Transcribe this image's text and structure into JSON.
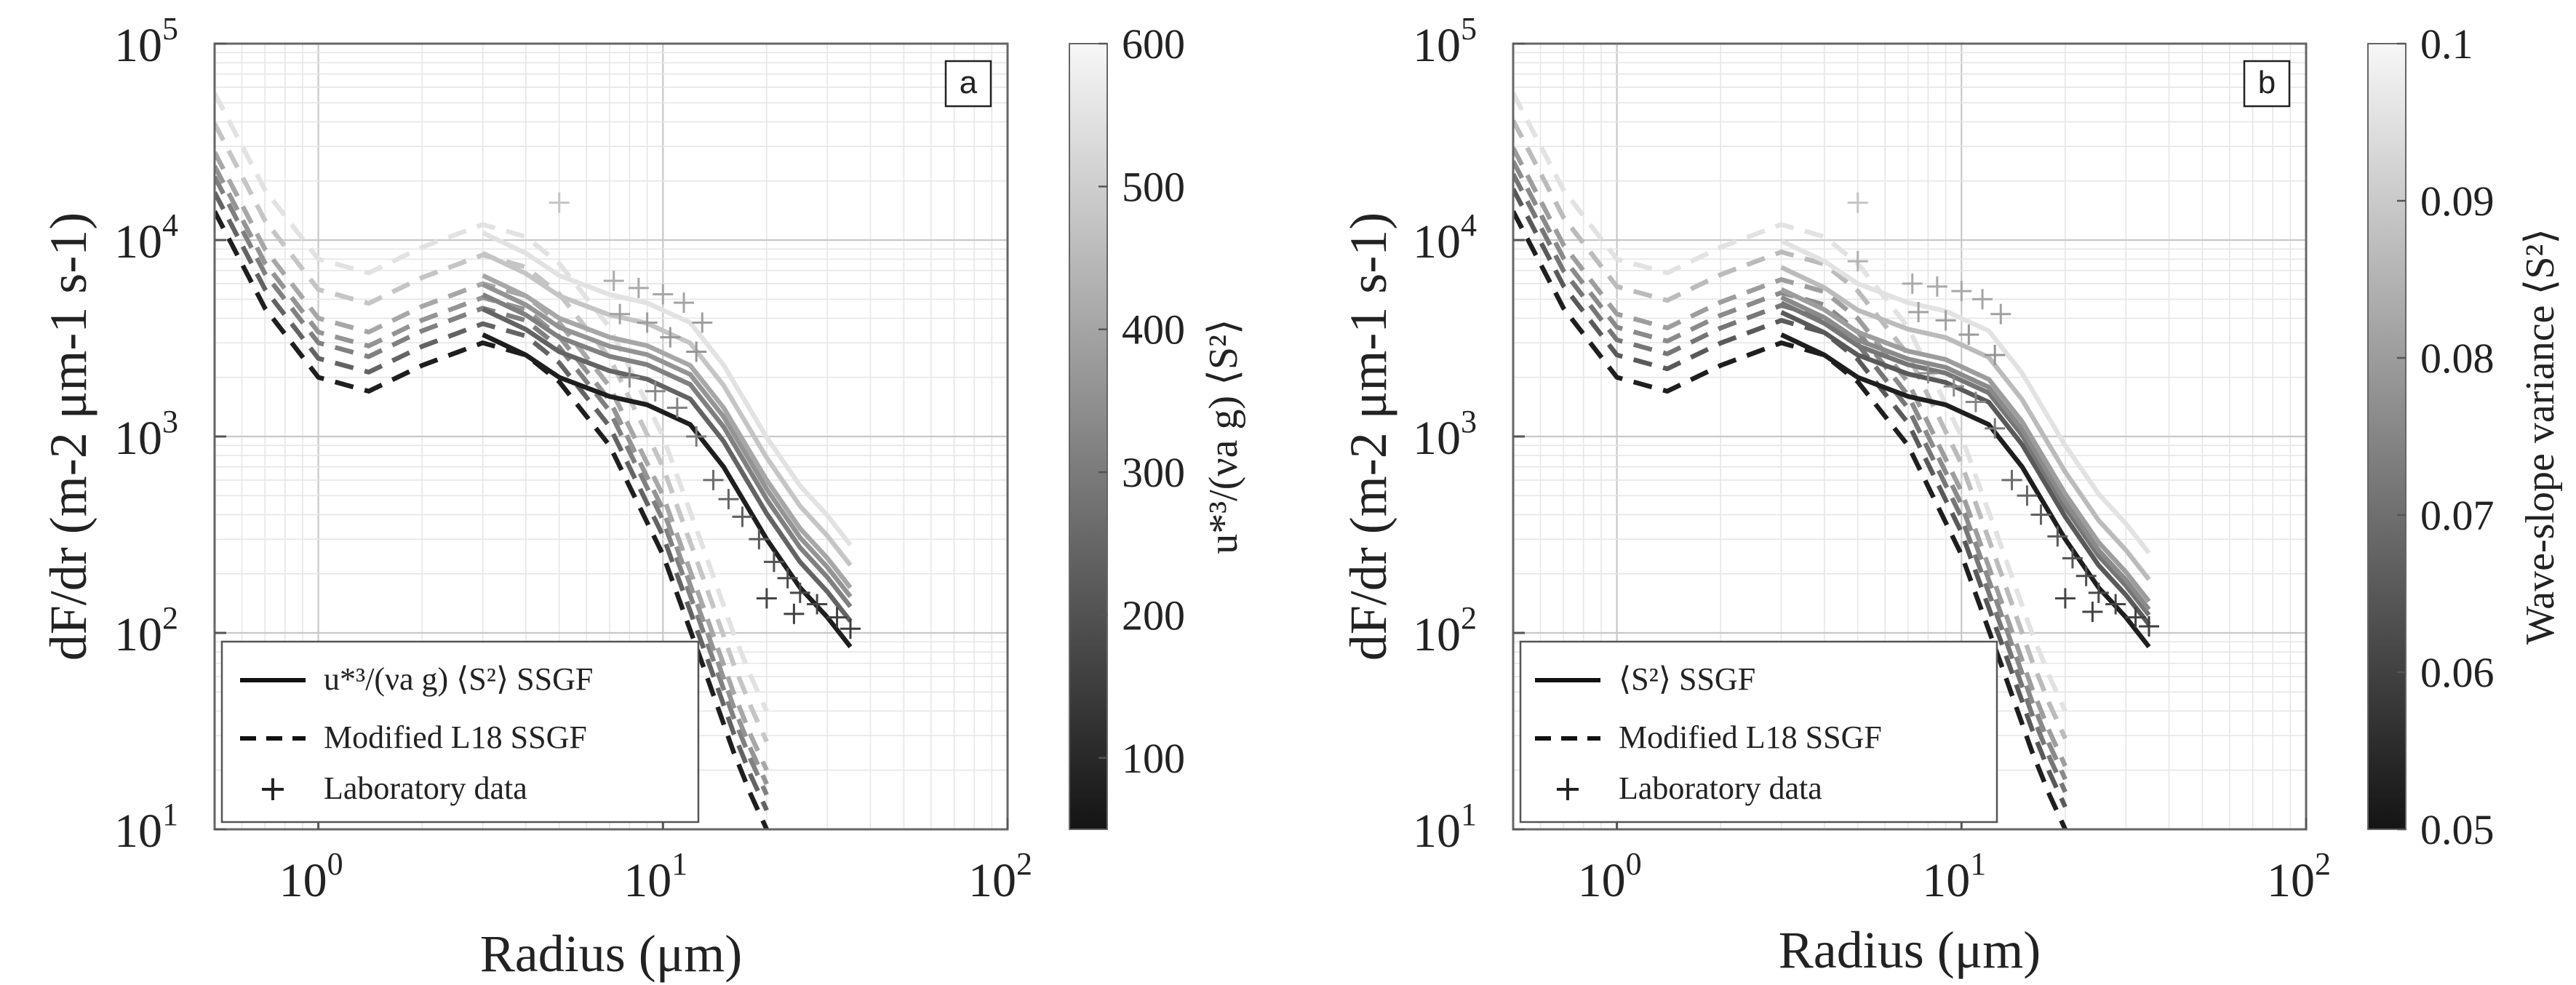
{
  "colors": {
    "axis": "#666666",
    "grid_major": "#c8c8c8",
    "grid_minor": "#e6e6e6",
    "darkest_series": "#1e1e1e",
    "lightest_series": "#e2e2e2"
  },
  "chart_data": [
    {
      "type": "line",
      "panel_label": "a",
      "xscale": "log",
      "yscale": "log",
      "xlim": [
        0.5,
        100
      ],
      "ylim": [
        10,
        100000
      ],
      "grid": true,
      "xlabel": "Radius (μm)",
      "ylabel": "dF/dr (m-2 μm-1 s-1)",
      "x_ticks": [
        {
          "value": 1,
          "label": "10",
          "exp": "0"
        },
        {
          "value": 10,
          "label": "10",
          "exp": "1"
        },
        {
          "value": 100,
          "label": "10",
          "exp": "2"
        }
      ],
      "y_ticks": [
        {
          "value": 10,
          "label": "10",
          "exp": "1"
        },
        {
          "value": 100,
          "label": "10",
          "exp": "2"
        },
        {
          "value": 1000,
          "label": "10",
          "exp": "3"
        },
        {
          "value": 10000,
          "label": "10",
          "exp": "4"
        },
        {
          "value": 100000,
          "label": "10",
          "exp": "5"
        }
      ],
      "colorbar": {
        "label": "u*³/(νa g) ⟨S²⟩",
        "range": [
          50,
          600
        ],
        "ticks": [
          100,
          200,
          300,
          400,
          500,
          600
        ],
        "tick_labels": [
          "100",
          "200",
          "300",
          "400",
          "500",
          "600"
        ]
      },
      "legend": {
        "position": "bottom-left",
        "entries": [
          {
            "style": "solid",
            "label": "u*³/(νa g) ⟨S²⟩ SSGF"
          },
          {
            "style": "dashed",
            "label": "Modified L18 SSGF"
          },
          {
            "style": "marker",
            "label": "Laboratory data"
          }
        ]
      },
      "series_levels": [
        0.0,
        0.35,
        0.5,
        0.6,
        0.7,
        0.85,
        1.0
      ],
      "ssgf_solid": {
        "x": [
          3,
          4,
          5,
          7,
          9,
          12,
          15,
          20,
          25,
          30,
          35
        ],
        "base": [
          3300,
          2600,
          2000,
          1600,
          1450,
          1150,
          700,
          300,
          170,
          120,
          85
        ],
        "factors": [
          1.0,
          1.35,
          1.6,
          1.8,
          2.0,
          2.6,
          3.3
        ]
      },
      "l18_dashed": {
        "x": [
          0.5,
          0.7,
          1.0,
          1.4,
          2.0,
          3.0,
          4.0,
          5.0,
          7.0,
          10.0,
          13.0,
          16.0,
          18.0,
          20.0
        ],
        "base": [
          14000,
          4500,
          2000,
          1700,
          2300,
          3000,
          2600,
          1900,
          900,
          250,
          70,
          25,
          15,
          10
        ],
        "factors": [
          1.0,
          1.25,
          1.5,
          1.7,
          2.0,
          2.8,
          4.0
        ]
      },
      "lab_points": [
        {
          "x": 5.0,
          "y": 15500
        },
        {
          "x": 7.2,
          "y": 6200
        },
        {
          "x": 8.5,
          "y": 5700
        },
        {
          "x": 10.0,
          "y": 5300
        },
        {
          "x": 11.5,
          "y": 4800
        },
        {
          "x": 13.0,
          "y": 3800
        },
        {
          "x": 7.5,
          "y": 4200
        },
        {
          "x": 9.0,
          "y": 3800
        },
        {
          "x": 10.5,
          "y": 3200
        },
        {
          "x": 12.5,
          "y": 2700
        },
        {
          "x": 8.0,
          "y": 2000
        },
        {
          "x": 9.5,
          "y": 1700
        },
        {
          "x": 11.0,
          "y": 1400
        },
        {
          "x": 12.5,
          "y": 1000
        },
        {
          "x": 14.0,
          "y": 600
        },
        {
          "x": 15.5,
          "y": 480
        },
        {
          "x": 17.0,
          "y": 390
        },
        {
          "x": 19.0,
          "y": 300
        },
        {
          "x": 21.0,
          "y": 230
        },
        {
          "x": 23.0,
          "y": 190
        },
        {
          "x": 25.0,
          "y": 160
        },
        {
          "x": 28.0,
          "y": 140
        },
        {
          "x": 32.0,
          "y": 120
        },
        {
          "x": 35.0,
          "y": 105
        },
        {
          "x": 20.0,
          "y": 150
        },
        {
          "x": 24.0,
          "y": 125
        }
      ]
    },
    {
      "type": "line",
      "panel_label": "b",
      "xscale": "log",
      "yscale": "log",
      "xlim": [
        0.5,
        100
      ],
      "ylim": [
        10,
        100000
      ],
      "grid": true,
      "xlabel": "Radius (μm)",
      "ylabel": "dF/dr (m-2 μm-1 s-1)",
      "x_ticks": [
        {
          "value": 1,
          "label": "10",
          "exp": "0"
        },
        {
          "value": 10,
          "label": "10",
          "exp": "1"
        },
        {
          "value": 100,
          "label": "10",
          "exp": "2"
        }
      ],
      "y_ticks": [
        {
          "value": 10,
          "label": "10",
          "exp": "1"
        },
        {
          "value": 100,
          "label": "10",
          "exp": "2"
        },
        {
          "value": 1000,
          "label": "10",
          "exp": "3"
        },
        {
          "value": 10000,
          "label": "10",
          "exp": "4"
        },
        {
          "value": 100000,
          "label": "10",
          "exp": "5"
        }
      ],
      "colorbar": {
        "label": "Wave-slope variance ⟨S²⟩",
        "range": [
          0.05,
          0.1
        ],
        "ticks": [
          0.05,
          0.06,
          0.07,
          0.08,
          0.09,
          0.1
        ],
        "tick_labels": [
          "0.05",
          "0.06",
          "0.07",
          "0.08",
          "0.09",
          "0.1"
        ]
      },
      "legend": {
        "position": "bottom-left",
        "entries": [
          {
            "style": "solid",
            "label": "⟨S²⟩ SSGF"
          },
          {
            "style": "dashed",
            "label": "Modified L18 SSGF"
          },
          {
            "style": "marker",
            "label": "Laboratory data"
          }
        ]
      },
      "series_levels": [
        0.0,
        0.3,
        0.45,
        0.55,
        0.65,
        0.8,
        1.0
      ],
      "ssgf_solid": {
        "x": [
          3,
          4,
          5,
          7,
          9,
          12,
          15,
          20,
          25,
          30,
          35
        ],
        "base": [
          3300,
          2600,
          2000,
          1600,
          1450,
          1150,
          700,
          300,
          170,
          120,
          85
        ],
        "factors": [
          1.0,
          1.3,
          1.45,
          1.55,
          1.7,
          2.2,
          3.0
        ]
      },
      "l18_dashed": {
        "x": [
          0.5,
          0.7,
          1.0,
          1.4,
          2.0,
          3.0,
          4.0,
          5.0,
          7.0,
          10.0,
          13.0,
          16.0,
          18.0,
          20.0
        ],
        "base": [
          14000,
          4500,
          2000,
          1700,
          2300,
          3000,
          2600,
          1900,
          900,
          250,
          70,
          25,
          15,
          10
        ],
        "factors": [
          1.0,
          1.3,
          1.55,
          1.8,
          2.1,
          2.9,
          4.0
        ]
      },
      "lab_points": [
        {
          "x": 5.0,
          "y": 15500
        },
        {
          "x": 5.0,
          "y": 7800
        },
        {
          "x": 7.2,
          "y": 6000
        },
        {
          "x": 8.5,
          "y": 5800
        },
        {
          "x": 10.0,
          "y": 5500
        },
        {
          "x": 11.5,
          "y": 5000
        },
        {
          "x": 13.0,
          "y": 4200
        },
        {
          "x": 7.5,
          "y": 4300
        },
        {
          "x": 9.0,
          "y": 3900
        },
        {
          "x": 10.5,
          "y": 3300
        },
        {
          "x": 12.5,
          "y": 2600
        },
        {
          "x": 8.0,
          "y": 2100
        },
        {
          "x": 9.5,
          "y": 1800
        },
        {
          "x": 11.0,
          "y": 1500
        },
        {
          "x": 12.5,
          "y": 1100
        },
        {
          "x": 14.0,
          "y": 600
        },
        {
          "x": 15.5,
          "y": 500
        },
        {
          "x": 17.0,
          "y": 400
        },
        {
          "x": 19.0,
          "y": 310
        },
        {
          "x": 21.0,
          "y": 240
        },
        {
          "x": 23.0,
          "y": 195
        },
        {
          "x": 25.0,
          "y": 160
        },
        {
          "x": 28.0,
          "y": 140
        },
        {
          "x": 32.0,
          "y": 120
        },
        {
          "x": 35.0,
          "y": 108
        },
        {
          "x": 20.0,
          "y": 150
        },
        {
          "x": 24.0,
          "y": 128
        }
      ]
    }
  ]
}
